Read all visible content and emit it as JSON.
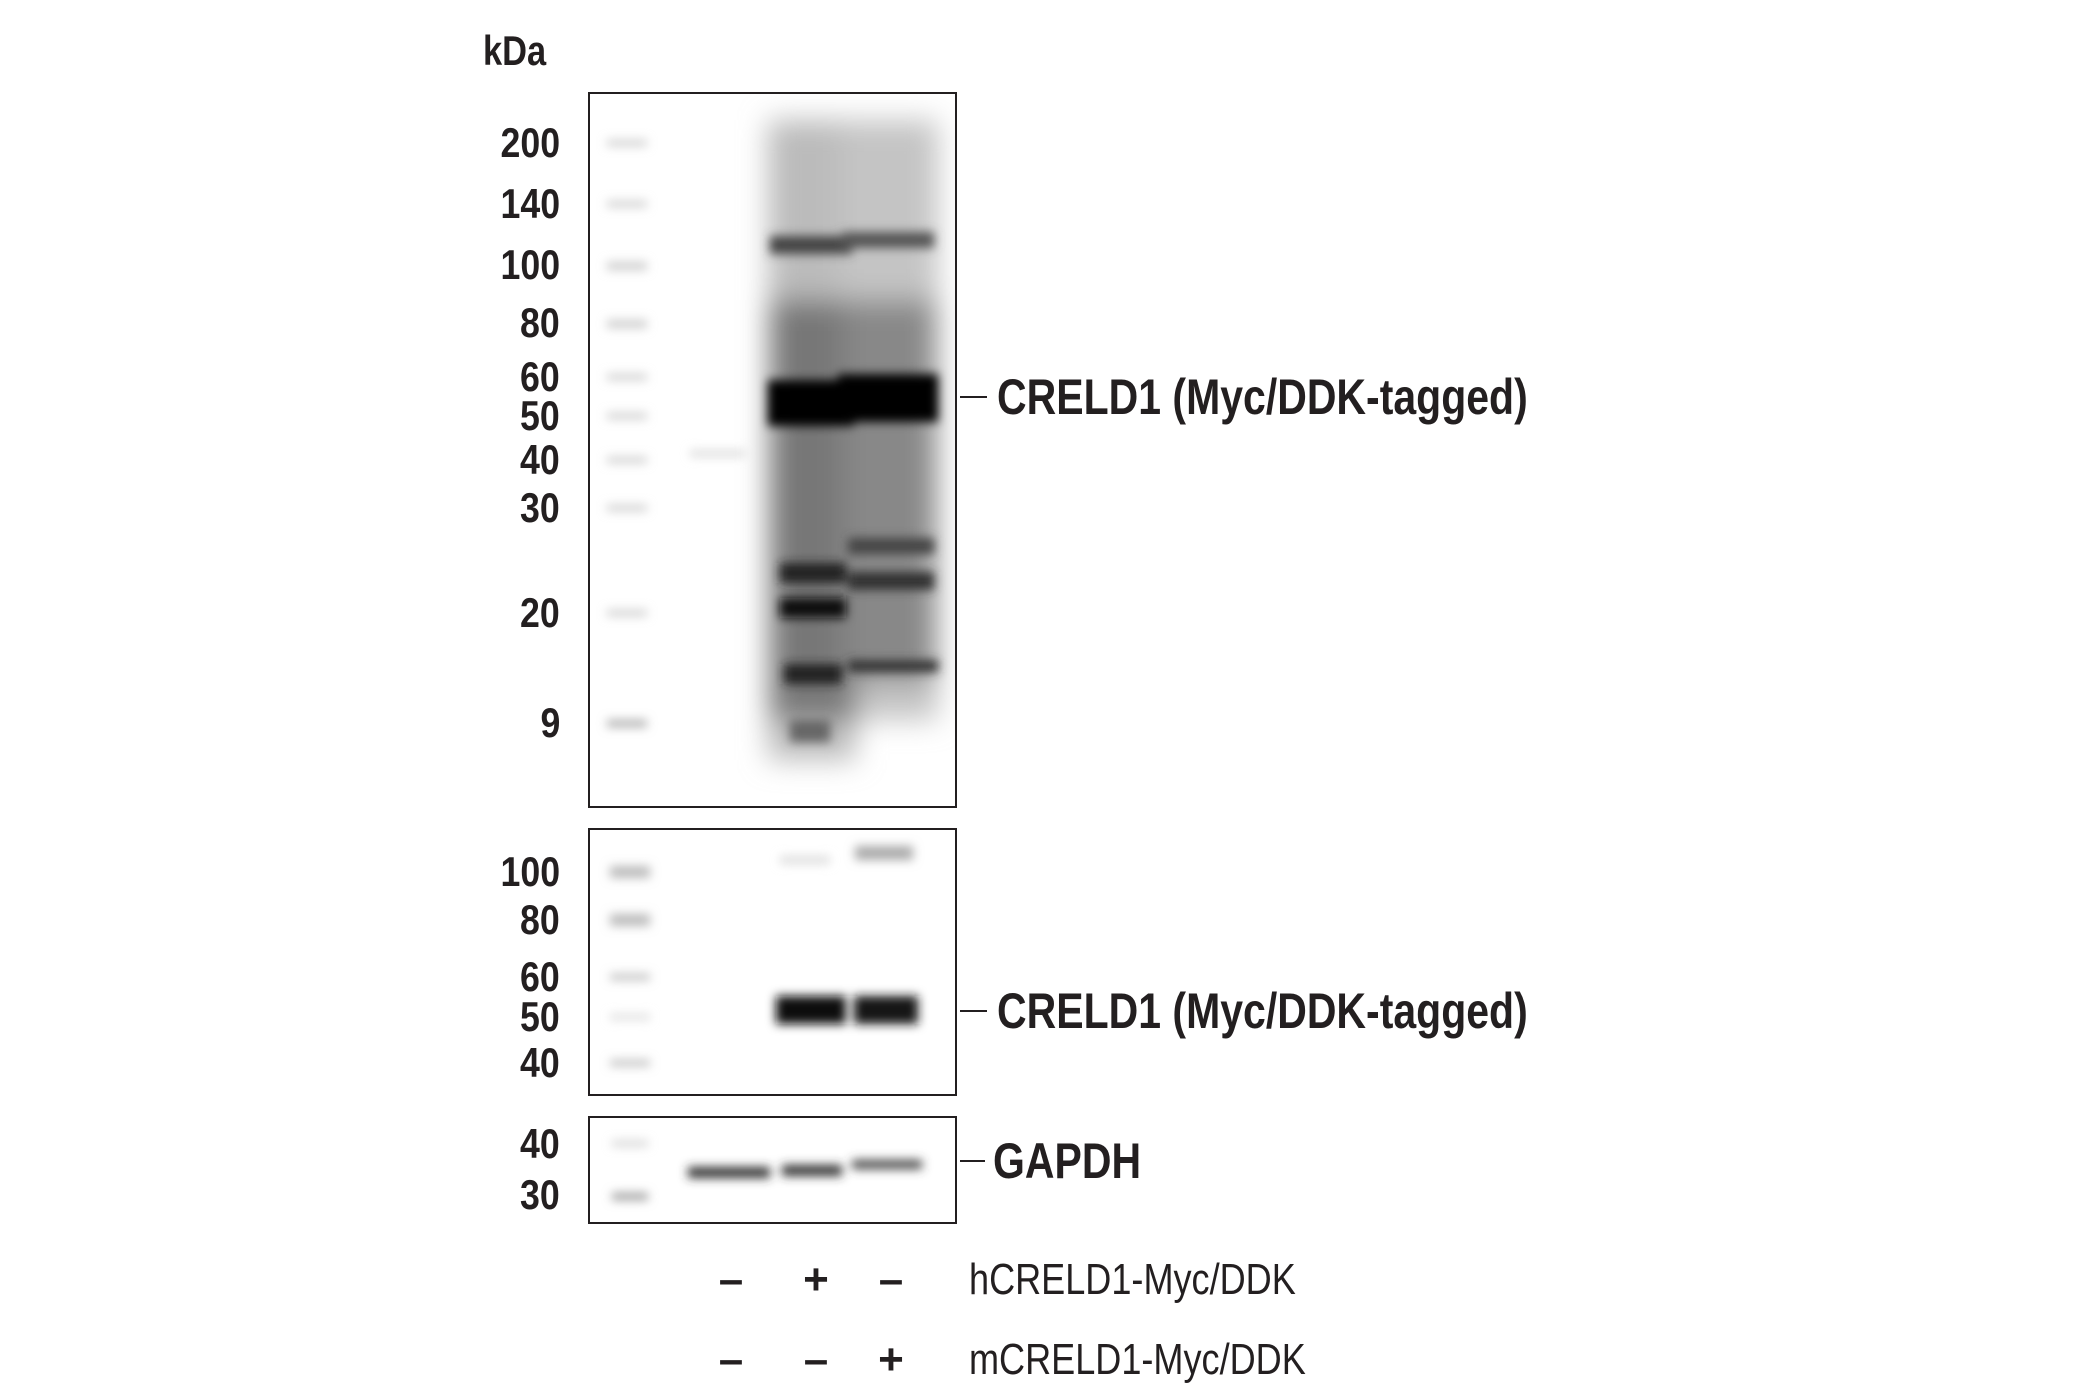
{
  "unit_label": "kDa",
  "panels": [
    {
      "markers": [
        "200",
        "140",
        "100",
        "80",
        "60",
        "50",
        "40",
        "30",
        "20",
        "9"
      ],
      "target_label": "CRELD1 (Myc/DDK-tagged)"
    },
    {
      "markers": [
        "100",
        "80",
        "60",
        "50",
        "40"
      ],
      "target_label": "CRELD1 (Myc/DDK-tagged)"
    },
    {
      "markers": [
        "40",
        "30"
      ],
      "target_label": "GAPDH"
    }
  ],
  "conditions": [
    {
      "label": "hCRELD1-Myc/DDK",
      "lanes": [
        "–",
        "+",
        "–"
      ]
    },
    {
      "label": "mCRELD1-Myc/DDK",
      "lanes": [
        "–",
        "–",
        "+"
      ]
    }
  ]
}
